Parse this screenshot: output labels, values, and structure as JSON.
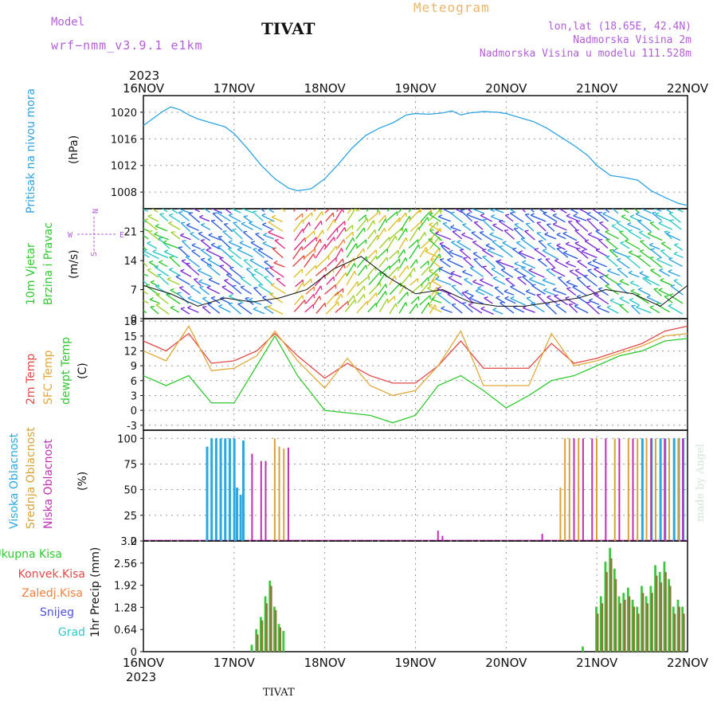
{
  "header": {
    "model_label": "Model",
    "model_id": "wrf−nmm_v3.9.1  e1km",
    "station": "TIVAT",
    "meteogram_label": "Meteogram",
    "info_lines": [
      "lon,lat (18.65E, 42.4N)",
      "Nadmorska Visina 2m",
      "Nadmorska Visina u modelu 111.528m"
    ],
    "made_by": "made by Angel",
    "footer_station": "TIVAT"
  },
  "x_axis": {
    "year": "2023",
    "ticks": [
      "16NOV",
      "17NOV",
      "18NOV",
      "19NOV",
      "20NOV",
      "21NOV",
      "22NOV"
    ]
  },
  "panel_labels": {
    "pressure": {
      "main": "Pritisak na nivou mora",
      "unit": "(hPa)"
    },
    "wind": {
      "main_1": "10m Vjetar",
      "main_2": "Brzina i Pravac",
      "unit": "(m/s)",
      "compass_n": "N",
      "compass_s": "S",
      "compass_e": "E",
      "compass_w": "W"
    },
    "temp": {
      "line_1": "2m Temp",
      "line_2": "SFC Temp",
      "line_3": "dewpt Temp",
      "unit": "(C)"
    },
    "cloud": {
      "line_1": "Visoka Oblacnost",
      "line_2": "Srednja Oblacnost",
      "line_3": "Niska Oblacnost",
      "unit": "(%)"
    },
    "precip": {
      "legend": [
        "Ukupna Kisa",
        "Konvek.Kisa",
        "Zaledj.Kisa",
        "Snijeg",
        "Grad"
      ],
      "unit": "1hr Precip (mm)"
    }
  },
  "colors": {
    "pressure": "#2ea3e0",
    "temp2m": "#e24848",
    "sfc": "#e0a83a",
    "dew": "#30c830",
    "cloud_high": "#2aa8e0",
    "cloud_mid": "#d8a238",
    "cloud_low": "#c030b0",
    "precip_total": "#3cc83c",
    "precip_conv": "#e04848",
    "precip_frz": "#f08040",
    "snow": "#5050e0",
    "hail": "#30c8c8",
    "purple": "#b15fd6"
  },
  "chart_data": [
    {
      "type": "line",
      "ylabel": "Pritisak na nivou mora (hPa)",
      "yticks": [
        1008,
        1012,
        1016,
        1020
      ],
      "ylim": [
        1005.5,
        1022.5
      ],
      "x_days": [
        0,
        0.1,
        0.2,
        0.3,
        0.4,
        0.5,
        0.6,
        0.75,
        0.9,
        1.0,
        1.15,
        1.3,
        1.45,
        1.6,
        1.7,
        1.85,
        2.0,
        2.15,
        2.3,
        2.45,
        2.6,
        2.75,
        2.9,
        3.0,
        3.15,
        3.3,
        3.4,
        3.5,
        3.6,
        3.75,
        3.9,
        4.0,
        4.15,
        4.3,
        4.45,
        4.6,
        4.75,
        4.9,
        5.0,
        5.15,
        5.3,
        5.45,
        5.6,
        5.75,
        5.9,
        6.0
      ],
      "series": [
        {
          "values": [
            1018.0,
            1019.0,
            1020.0,
            1020.8,
            1020.4,
            1019.6,
            1019.0,
            1018.4,
            1017.8,
            1016.8,
            1014.5,
            1012.0,
            1010.0,
            1008.6,
            1008.2,
            1008.5,
            1010.0,
            1012.2,
            1014.6,
            1016.5,
            1017.6,
            1018.4,
            1019.6,
            1019.8,
            1019.7,
            1019.9,
            1020.2,
            1019.6,
            1019.9,
            1020.1,
            1020.0,
            1019.8,
            1019.2,
            1018.6,
            1017.6,
            1016.3,
            1015.0,
            1013.5,
            1012.0,
            1010.5,
            1010.2,
            1009.8,
            1008.2,
            1007.2,
            1006.3,
            1006.0
          ]
        }
      ]
    },
    {
      "type": "line",
      "ylabel": "10m Vjetar Brzina i Pravac (m/s)",
      "yticks": [
        0,
        7,
        14,
        21
      ],
      "ylim": [
        0,
        26.5
      ],
      "x_days": [
        0,
        0.3,
        0.6,
        0.9,
        1.2,
        1.5,
        1.8,
        2.1,
        2.4,
        2.7,
        3.0,
        3.3,
        3.6,
        3.9,
        4.2,
        4.5,
        4.8,
        5.1,
        5.4,
        5.7,
        6.0
      ],
      "series": [
        {
          "values": [
            8,
            6,
            3,
            5,
            4,
            5,
            7,
            12,
            15,
            10,
            6,
            7,
            4,
            3,
            3,
            4,
            5,
            7,
            6,
            3,
            8
          ]
        }
      ]
    },
    {
      "type": "line",
      "ylabel": "2m Temp / SFC Temp / dewpt Temp (C)",
      "yticks": [
        -3,
        0,
        3,
        6,
        9,
        12,
        15,
        18
      ],
      "ylim": [
        -4,
        18.5
      ],
      "x_days": [
        0,
        0.25,
        0.5,
        0.75,
        1.0,
        1.25,
        1.45,
        1.7,
        2.0,
        2.25,
        2.5,
        2.75,
        3.0,
        3.25,
        3.5,
        3.75,
        4.0,
        4.25,
        4.5,
        4.75,
        5.0,
        5.25,
        5.5,
        5.75,
        6.0
      ],
      "series": [
        {
          "name": "2m Temp",
          "values": [
            14,
            12,
            15.5,
            9.5,
            10,
            12,
            15.5,
            11,
            6.5,
            9.5,
            7,
            5.5,
            5.5,
            9,
            14,
            8.5,
            8.5,
            8.5,
            13.5,
            9.5,
            10.5,
            12,
            13.5,
            16,
            17
          ]
        },
        {
          "name": "SFC Temp",
          "values": [
            12,
            10,
            17,
            8,
            8.5,
            11,
            16,
            10,
            4.5,
            10.5,
            5,
            3,
            4,
            9,
            16,
            5,
            5,
            5,
            15.5,
            9,
            10,
            11.5,
            13,
            15,
            15.5
          ]
        },
        {
          "name": "dewpt Temp",
          "values": [
            7,
            5,
            7,
            1.5,
            1.5,
            9,
            15,
            7,
            0,
            -0.5,
            -1,
            -2.5,
            -1,
            5,
            7,
            4,
            0.5,
            3,
            6,
            7,
            9,
            11,
            12,
            14,
            14.5
          ]
        }
      ]
    },
    {
      "type": "bar",
      "ylabel": "Visoka / Srednja / Niska Oblacnost (%)",
      "yticks": [
        0,
        25,
        50,
        75,
        100
      ],
      "ylim": [
        0,
        108
      ],
      "series": [
        {
          "name": "Visoka Oblacnost",
          "x_days": [
            0.7,
            0.75,
            0.8,
            0.85,
            0.9,
            0.95,
            1.0,
            1.03,
            1.07,
            1.1,
            5.5,
            5.6,
            5.7,
            5.75,
            5.85,
            5.9,
            5.95
          ],
          "values": [
            92,
            100,
            100,
            100,
            100,
            100,
            100,
            52,
            45,
            98,
            100,
            100,
            100,
            100,
            100,
            100,
            100
          ]
        },
        {
          "name": "Srednja Oblacnost",
          "x_days": [
            1.45,
            1.5,
            1.55,
            4.6,
            4.65,
            4.7,
            4.8,
            5.0,
            5.2,
            5.35,
            5.45,
            5.55,
            5.65,
            5.8,
            5.9
          ],
          "values": [
            100,
            92,
            90,
            52,
            100,
            100,
            100,
            100,
            100,
            100,
            100,
            100,
            100,
            100,
            100
          ]
        },
        {
          "name": "Niska Oblacnost",
          "x_days": [
            1.2,
            1.3,
            1.35,
            1.6,
            3.25,
            3.3,
            4.4,
            4.75,
            4.85,
            4.95,
            5.1,
            5.25,
            5.4,
            5.6,
            5.75,
            5.95
          ],
          "values": [
            85,
            78,
            78,
            91,
            10,
            5,
            7,
            100,
            100,
            100,
            100,
            100,
            100,
            100,
            100,
            100
          ]
        }
      ]
    },
    {
      "type": "bar",
      "ylabel": "1hr Precip (mm)",
      "yticks": [
        0,
        0.64,
        1.28,
        1.92,
        2.56,
        3.2
      ],
      "ylim": [
        0,
        3.2
      ],
      "series": [
        {
          "name": "Ukupna Kisa",
          "x_days": [
            1.2,
            1.25,
            1.3,
            1.35,
            1.4,
            1.45,
            1.5,
            1.55,
            4.85,
            5.0,
            5.05,
            5.1,
            5.15,
            5.2,
            5.25,
            5.3,
            5.35,
            5.4,
            5.45,
            5.5,
            5.55,
            5.6,
            5.65,
            5.7,
            5.75,
            5.8,
            5.85,
            5.9,
            5.95
          ],
          "values": [
            0.2,
            0.65,
            1.0,
            1.6,
            2.05,
            1.3,
            0.8,
            0.6,
            0.15,
            1.3,
            1.6,
            2.6,
            3.0,
            2.4,
            1.6,
            1.7,
            1.85,
            1.5,
            1.3,
            1.9,
            1.6,
            1.9,
            2.5,
            2.3,
            2.6,
            2.1,
            1.3,
            1.5,
            1.3
          ]
        },
        {
          "name": "Konvek.Kisa",
          "x_days": [
            1.25,
            1.3,
            1.35,
            1.4,
            1.45,
            1.5,
            5.0,
            5.05,
            5.1,
            5.15,
            5.2,
            5.25,
            5.3,
            5.35,
            5.4,
            5.45,
            5.5,
            5.55,
            5.6,
            5.65,
            5.7,
            5.75,
            5.8,
            5.85,
            5.9,
            5.95
          ],
          "values": [
            0.5,
            0.9,
            1.4,
            1.9,
            1.2,
            0.7,
            1.1,
            1.4,
            2.3,
            2.7,
            2.1,
            1.4,
            1.5,
            1.6,
            1.3,
            1.1,
            1.7,
            1.4,
            1.7,
            2.2,
            2.0,
            2.3,
            1.9,
            1.1,
            1.3,
            1.1
          ]
        }
      ]
    }
  ]
}
